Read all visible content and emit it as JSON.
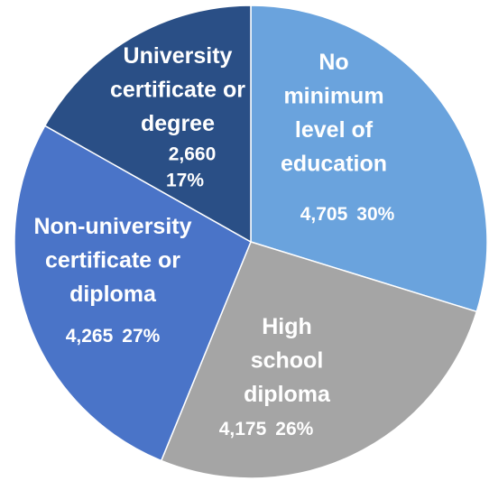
{
  "chart_data": {
    "type": "pie",
    "categories": [
      "No\nminimum\nlevel of\neducation",
      "High\nschool\ndiploma",
      "Non-university\ncertificate or\ndiploma",
      "University\ncertificate or\ndegree"
    ],
    "values": [
      4705,
      4175,
      4265,
      2660
    ],
    "value_labels": [
      "4,705",
      "4,175",
      "4,265",
      "2,660"
    ],
    "percents": [
      30,
      26,
      27,
      17
    ],
    "percent_labels": [
      "30%",
      "26%",
      "27%",
      "17%"
    ],
    "colors": [
      "#6aa3dd",
      "#a5a5a5",
      "#4a74c8",
      "#2a4f86"
    ]
  }
}
